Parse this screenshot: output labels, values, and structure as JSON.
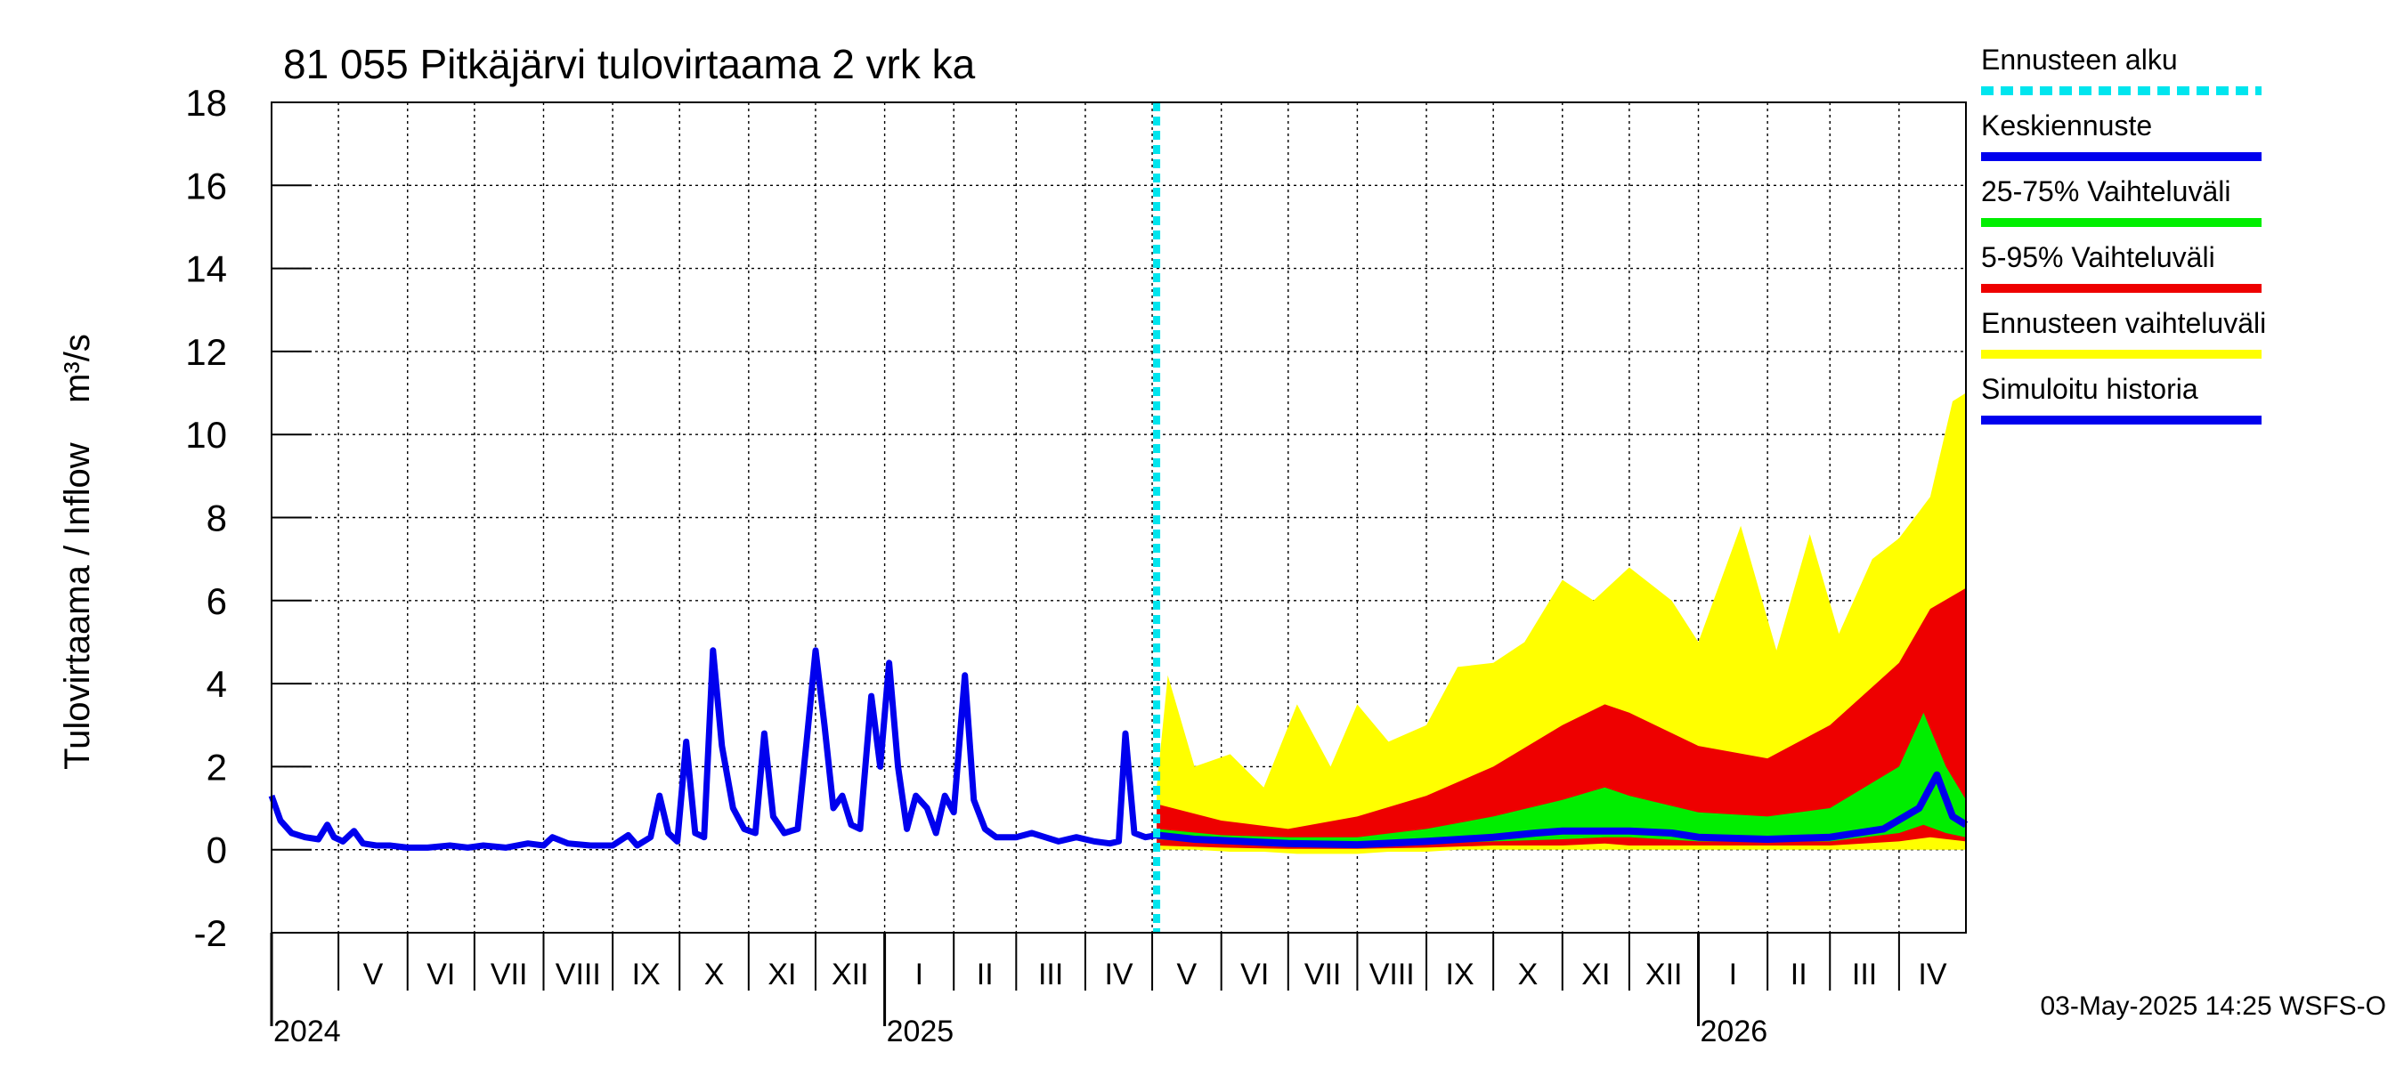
{
  "chart_data": {
    "type": "line",
    "title": "81 055 Pitkäjärvi tulovirtaama 2 vrk ka",
    "ylabel": "Tulovirtaama / Inflow    m³/s",
    "ylim": [
      -2,
      18
    ],
    "yticks": [
      -2,
      0,
      2,
      4,
      6,
      8,
      10,
      12,
      14,
      16,
      18
    ],
    "grid": true,
    "legend_position": "right",
    "x_range": [
      "2024-04-01",
      "2026-05-01"
    ],
    "forecast_start": "2025-05-03",
    "month_labels": [
      {
        "label": "V",
        "date": "2024-05-01"
      },
      {
        "label": "VI",
        "date": "2024-06-01"
      },
      {
        "label": "VII",
        "date": "2024-07-01"
      },
      {
        "label": "VIII",
        "date": "2024-08-01"
      },
      {
        "label": "IX",
        "date": "2024-09-01"
      },
      {
        "label": "X",
        "date": "2024-10-01"
      },
      {
        "label": "XI",
        "date": "2024-11-01"
      },
      {
        "label": "XII",
        "date": "2024-12-01"
      },
      {
        "label": "I",
        "date": "2025-01-01"
      },
      {
        "label": "II",
        "date": "2025-02-01"
      },
      {
        "label": "III",
        "date": "2025-03-01"
      },
      {
        "label": "IV",
        "date": "2025-04-01"
      },
      {
        "label": "V",
        "date": "2025-05-01"
      },
      {
        "label": "VI",
        "date": "2025-06-01"
      },
      {
        "label": "VII",
        "date": "2025-07-01"
      },
      {
        "label": "VIII",
        "date": "2025-08-01"
      },
      {
        "label": "IX",
        "date": "2025-09-01"
      },
      {
        "label": "X",
        "date": "2025-10-01"
      },
      {
        "label": "XI",
        "date": "2025-11-01"
      },
      {
        "label": "XII",
        "date": "2025-12-01"
      },
      {
        "label": "I",
        "date": "2026-01-01"
      },
      {
        "label": "II",
        "date": "2026-02-01"
      },
      {
        "label": "III",
        "date": "2026-03-01"
      },
      {
        "label": "IV",
        "date": "2026-04-01"
      }
    ],
    "year_labels": [
      {
        "label": "2024",
        "date": "2024-04-01"
      },
      {
        "label": "2025",
        "date": "2025-01-01"
      },
      {
        "label": "2026",
        "date": "2026-01-01"
      }
    ],
    "legend": [
      {
        "label": "Ennusteen alku",
        "color": "#00e5ee",
        "style": "dashed"
      },
      {
        "label": "Keskiennuste",
        "color": "#0000ee",
        "style": "solid"
      },
      {
        "label": "25-75% Vaihteluväli",
        "color": "#00ee00",
        "style": "solid"
      },
      {
        "label": "5-95% Vaihteluväli",
        "color": "#ee0000",
        "style": "solid"
      },
      {
        "label": "Ennusteen vaihteluväli",
        "color": "#ffff00",
        "style": "solid"
      },
      {
        "label": "Simuloitu historia",
        "color": "#0000ee",
        "style": "solid"
      }
    ],
    "simulated_history": [
      [
        "2024-04-01",
        1.3
      ],
      [
        "2024-04-05",
        0.7
      ],
      [
        "2024-04-10",
        0.4
      ],
      [
        "2024-04-16",
        0.3
      ],
      [
        "2024-04-22",
        0.25
      ],
      [
        "2024-04-26",
        0.6
      ],
      [
        "2024-04-29",
        0.3
      ],
      [
        "2024-05-03",
        0.2
      ],
      [
        "2024-05-08",
        0.45
      ],
      [
        "2024-05-12",
        0.15
      ],
      [
        "2024-05-18",
        0.1
      ],
      [
        "2024-05-24",
        0.1
      ],
      [
        "2024-06-01",
        0.05
      ],
      [
        "2024-06-10",
        0.05
      ],
      [
        "2024-06-20",
        0.1
      ],
      [
        "2024-06-28",
        0.05
      ],
      [
        "2024-07-05",
        0.1
      ],
      [
        "2024-07-15",
        0.05
      ],
      [
        "2024-07-25",
        0.15
      ],
      [
        "2024-08-01",
        0.1
      ],
      [
        "2024-08-05",
        0.3
      ],
      [
        "2024-08-12",
        0.15
      ],
      [
        "2024-08-22",
        0.1
      ],
      [
        "2024-09-01",
        0.1
      ],
      [
        "2024-09-08",
        0.35
      ],
      [
        "2024-09-12",
        0.1
      ],
      [
        "2024-09-18",
        0.3
      ],
      [
        "2024-09-22",
        1.3
      ],
      [
        "2024-09-26",
        0.4
      ],
      [
        "2024-09-30",
        0.2
      ],
      [
        "2024-10-04",
        2.6
      ],
      [
        "2024-10-08",
        0.4
      ],
      [
        "2024-10-12",
        0.3
      ],
      [
        "2024-10-16",
        4.8
      ],
      [
        "2024-10-20",
        2.5
      ],
      [
        "2024-10-25",
        1.0
      ],
      [
        "2024-10-30",
        0.5
      ],
      [
        "2024-11-04",
        0.4
      ],
      [
        "2024-11-08",
        2.8
      ],
      [
        "2024-11-12",
        0.8
      ],
      [
        "2024-11-17",
        0.4
      ],
      [
        "2024-11-23",
        0.5
      ],
      [
        "2024-11-27",
        2.6
      ],
      [
        "2024-12-01",
        4.8
      ],
      [
        "2024-12-05",
        3.0
      ],
      [
        "2024-12-09",
        1.0
      ],
      [
        "2024-12-13",
        1.3
      ],
      [
        "2024-12-17",
        0.6
      ],
      [
        "2024-12-21",
        0.5
      ],
      [
        "2024-12-26",
        3.7
      ],
      [
        "2024-12-30",
        2.0
      ],
      [
        "2025-01-03",
        4.5
      ],
      [
        "2025-01-07",
        2.0
      ],
      [
        "2025-01-11",
        0.5
      ],
      [
        "2025-01-15",
        1.3
      ],
      [
        "2025-01-20",
        1.0
      ],
      [
        "2025-01-24",
        0.4
      ],
      [
        "2025-01-28",
        1.3
      ],
      [
        "2025-02-01",
        0.9
      ],
      [
        "2025-02-06",
        4.2
      ],
      [
        "2025-02-10",
        1.2
      ],
      [
        "2025-02-15",
        0.5
      ],
      [
        "2025-02-20",
        0.3
      ],
      [
        "2025-03-01",
        0.3
      ],
      [
        "2025-03-08",
        0.4
      ],
      [
        "2025-03-14",
        0.3
      ],
      [
        "2025-03-20",
        0.2
      ],
      [
        "2025-03-28",
        0.3
      ],
      [
        "2025-04-05",
        0.2
      ],
      [
        "2025-04-12",
        0.15
      ],
      [
        "2025-04-16",
        0.2
      ],
      [
        "2025-04-19",
        2.8
      ],
      [
        "2025-04-23",
        0.4
      ],
      [
        "2025-04-28",
        0.3
      ],
      [
        "2025-05-03",
        0.35
      ]
    ],
    "forecast_median": [
      [
        "2025-05-03",
        0.35
      ],
      [
        "2025-05-20",
        0.25
      ],
      [
        "2025-06-10",
        0.2
      ],
      [
        "2025-07-01",
        0.15
      ],
      [
        "2025-08-01",
        0.12
      ],
      [
        "2025-09-01",
        0.2
      ],
      [
        "2025-10-01",
        0.3
      ],
      [
        "2025-10-20",
        0.4
      ],
      [
        "2025-11-01",
        0.45
      ],
      [
        "2025-11-20",
        0.45
      ],
      [
        "2025-12-01",
        0.45
      ],
      [
        "2025-12-20",
        0.4
      ],
      [
        "2026-01-01",
        0.3
      ],
      [
        "2026-02-01",
        0.25
      ],
      [
        "2026-03-01",
        0.3
      ],
      [
        "2026-03-25",
        0.5
      ],
      [
        "2026-04-10",
        1.0
      ],
      [
        "2026-04-18",
        1.8
      ],
      [
        "2026-04-25",
        0.8
      ],
      [
        "2026-05-01",
        0.6
      ]
    ],
    "band_25_75": [
      [
        "2025-05-03",
        0.25,
        0.5
      ],
      [
        "2025-06-01",
        0.15,
        0.35
      ],
      [
        "2025-07-01",
        0.1,
        0.3
      ],
      [
        "2025-08-01",
        0.1,
        0.3
      ],
      [
        "2025-09-01",
        0.15,
        0.5
      ],
      [
        "2025-10-01",
        0.2,
        0.8
      ],
      [
        "2025-11-01",
        0.25,
        1.2
      ],
      [
        "2025-11-20",
        0.3,
        1.5
      ],
      [
        "2025-12-01",
        0.3,
        1.3
      ],
      [
        "2026-01-01",
        0.2,
        0.9
      ],
      [
        "2026-02-01",
        0.2,
        0.8
      ],
      [
        "2026-03-01",
        0.2,
        1.0
      ],
      [
        "2026-04-01",
        0.4,
        2.0
      ],
      [
        "2026-04-12",
        0.6,
        3.3
      ],
      [
        "2026-04-22",
        0.4,
        2.0
      ],
      [
        "2026-05-01",
        0.3,
        1.2
      ]
    ],
    "band_5_95": [
      [
        "2025-05-03",
        0.1,
        1.1
      ],
      [
        "2025-06-01",
        0.05,
        0.7
      ],
      [
        "2025-07-01",
        0.02,
        0.5
      ],
      [
        "2025-08-01",
        0.02,
        0.8
      ],
      [
        "2025-09-01",
        0.05,
        1.3
      ],
      [
        "2025-10-01",
        0.1,
        2.0
      ],
      [
        "2025-11-01",
        0.1,
        3.0
      ],
      [
        "2025-11-20",
        0.15,
        3.5
      ],
      [
        "2025-12-01",
        0.1,
        3.3
      ],
      [
        "2026-01-01",
        0.1,
        2.5
      ],
      [
        "2026-02-01",
        0.1,
        2.2
      ],
      [
        "2026-03-01",
        0.1,
        3.0
      ],
      [
        "2026-04-01",
        0.2,
        4.5
      ],
      [
        "2026-04-15",
        0.3,
        5.8
      ],
      [
        "2026-05-01",
        0.2,
        6.3
      ]
    ],
    "band_forecast_range": [
      [
        "2025-05-03",
        0.0,
        1.5
      ],
      [
        "2025-05-08",
        0.0,
        4.2
      ],
      [
        "2025-05-20",
        0.0,
        2.0
      ],
      [
        "2025-06-05",
        -0.05,
        2.3
      ],
      [
        "2025-06-20",
        -0.05,
        1.5
      ],
      [
        "2025-07-05",
        -0.1,
        3.5
      ],
      [
        "2025-07-20",
        -0.1,
        2.0
      ],
      [
        "2025-08-01",
        -0.1,
        3.5
      ],
      [
        "2025-08-15",
        -0.05,
        2.6
      ],
      [
        "2025-09-01",
        -0.05,
        3.0
      ],
      [
        "2025-09-15",
        0.0,
        4.4
      ],
      [
        "2025-10-01",
        0.0,
        4.5
      ],
      [
        "2025-10-15",
        0.0,
        5.0
      ],
      [
        "2025-11-01",
        0.0,
        6.5
      ],
      [
        "2025-11-15",
        0.0,
        6.0
      ],
      [
        "2025-12-01",
        0.0,
        6.8
      ],
      [
        "2025-12-20",
        0.0,
        6.0
      ],
      [
        "2026-01-01",
        0.0,
        5.0
      ],
      [
        "2026-01-20",
        0.0,
        7.8
      ],
      [
        "2026-02-05",
        0.0,
        4.8
      ],
      [
        "2026-02-20",
        0.0,
        7.6
      ],
      [
        "2026-03-05",
        0.0,
        5.2
      ],
      [
        "2026-03-20",
        0.0,
        7.0
      ],
      [
        "2026-04-01",
        0.0,
        7.5
      ],
      [
        "2026-04-15",
        0.0,
        8.5
      ],
      [
        "2026-04-25",
        0.0,
        10.8
      ],
      [
        "2026-05-01",
        0.0,
        11.0
      ]
    ]
  },
  "footer": {
    "timestamp": "03-May-2025 14:25 WSFS-O"
  }
}
